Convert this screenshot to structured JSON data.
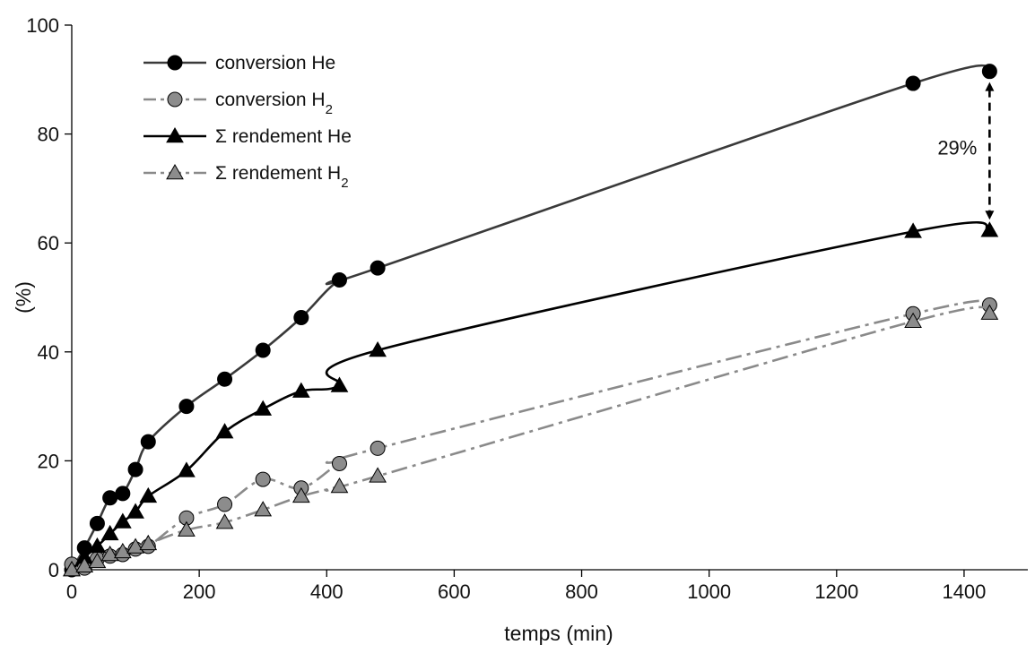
{
  "chart_data": {
    "type": "line",
    "title": "",
    "xlabel": "temps (min)",
    "ylabel": "(%)",
    "xlim": [
      0,
      1500
    ],
    "ylim": [
      0,
      100
    ],
    "xticks": [
      0,
      200,
      400,
      600,
      800,
      1000,
      1200,
      1400
    ],
    "yticks": [
      0,
      20,
      40,
      60,
      80,
      100
    ],
    "grid": false,
    "legend_position": "top-left",
    "series": [
      {
        "name": "conversion He",
        "legend_main": "conversion He",
        "legend_sub": "",
        "marker": "circle",
        "line_style": "solid",
        "line_color": "#3a3a3a",
        "marker_fill": "#000000",
        "x": [
          0,
          20,
          40,
          60,
          80,
          100,
          120,
          180,
          240,
          300,
          360,
          420,
          480,
          1320,
          1440
        ],
        "y": [
          0,
          4,
          8.5,
          13.2,
          14,
          18.4,
          23.5,
          30,
          35,
          40.3,
          46.3,
          53.2,
          55.4,
          89.3,
          91.5
        ]
      },
      {
        "name": "conversion H2",
        "legend_main": "conversion H",
        "legend_sub": "2",
        "marker": "circle",
        "line_style": "dashdot",
        "line_color": "#8a8a8a",
        "marker_fill": "#8c8c8c",
        "x": [
          0,
          20,
          40,
          60,
          80,
          100,
          120,
          180,
          240,
          300,
          360,
          420,
          480,
          1320,
          1440
        ],
        "y": [
          1,
          0.3,
          2,
          2.5,
          2.8,
          3.8,
          4.3,
          9.5,
          12,
          16.6,
          15,
          19.5,
          22.3,
          47,
          48.6
        ]
      },
      {
        "name": "Σ rendement He",
        "legend_main": "Σ rendement He",
        "legend_sub": "",
        "marker": "triangle",
        "line_style": "solid",
        "line_color": "#000000",
        "marker_fill": "#000000",
        "x": [
          0,
          20,
          40,
          60,
          80,
          100,
          120,
          180,
          240,
          300,
          360,
          420,
          480,
          1320,
          1440
        ],
        "y": [
          0,
          2.3,
          4.3,
          6.6,
          8.8,
          10.6,
          13.5,
          18.2,
          25.3,
          29.5,
          32.8,
          33.8,
          40.3,
          62.1,
          62.3
        ]
      },
      {
        "name": "Σ rendement H2",
        "legend_main": "Σ rendement H",
        "legend_sub": "2",
        "marker": "triangle",
        "line_style": "dashdot",
        "line_color": "#8a8a8a",
        "marker_fill": "#8c8c8c",
        "x": [
          0,
          20,
          40,
          60,
          80,
          100,
          120,
          180,
          240,
          300,
          360,
          420,
          480,
          1320,
          1440
        ],
        "y": [
          0,
          0.7,
          1.5,
          2.8,
          3.3,
          4.2,
          4.8,
          7.3,
          8.7,
          11,
          13.5,
          15.3,
          17.2,
          45.6,
          47.1
        ]
      }
    ],
    "annotations": [
      {
        "text": "29%",
        "x": 1440,
        "y_from": 91.5,
        "y_to": 62.3,
        "style": "dashed double arrow"
      }
    ]
  }
}
